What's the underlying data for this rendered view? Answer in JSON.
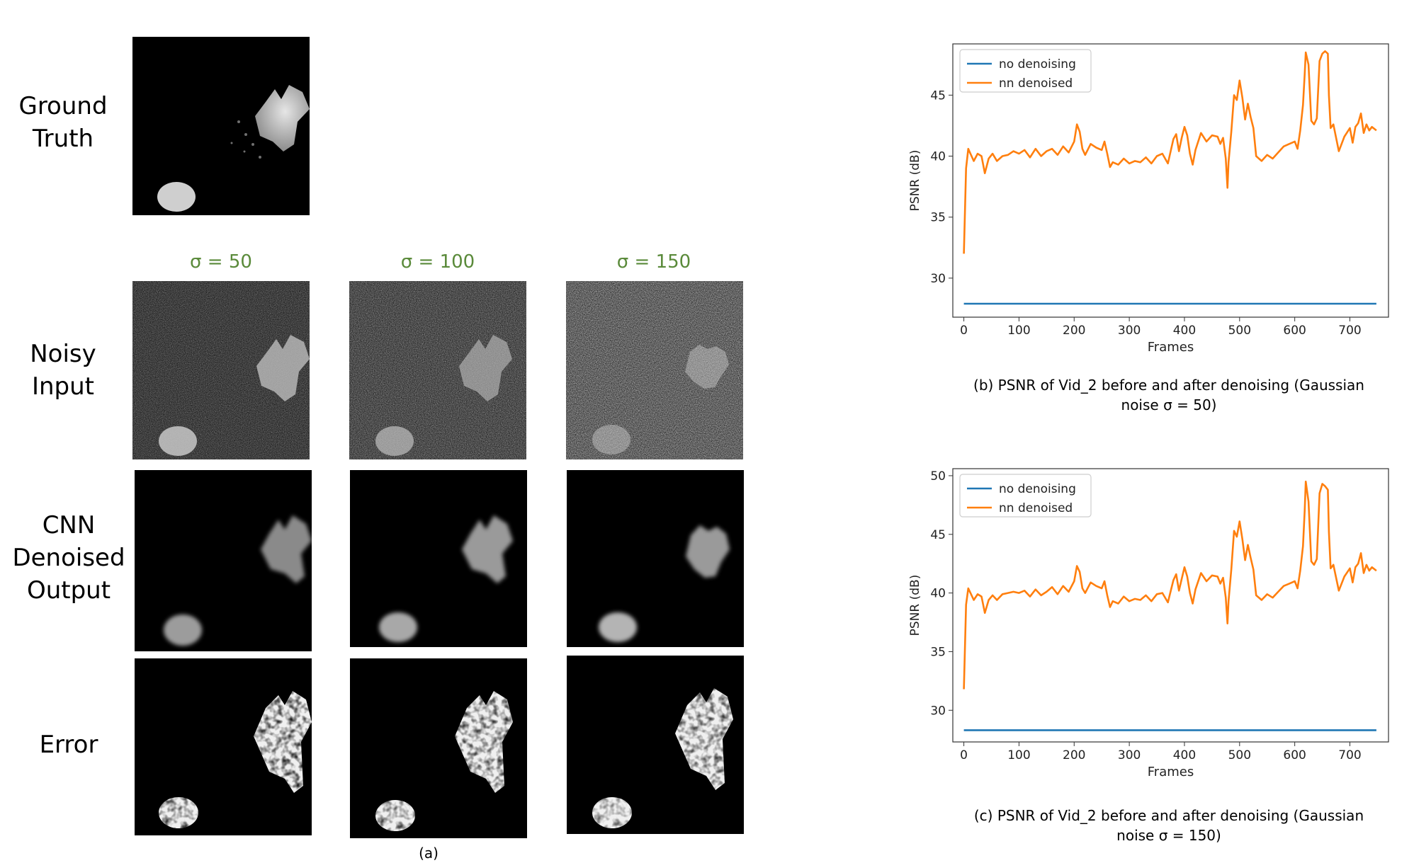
{
  "row_labels": {
    "ground_truth": [
      "Ground",
      "Truth"
    ],
    "noisy_input": [
      "Noisy",
      "Input"
    ],
    "cnn_output": [
      "CNN",
      "Denoised",
      "Output"
    ],
    "error": [
      "Error"
    ]
  },
  "sigma_labels": [
    "σ = 50",
    "σ = 100",
    "σ = 150"
  ],
  "panel_a_caption": "(a)",
  "captions": {
    "b": [
      "(b) PSNR of Vid_2 before and after denoising (Gaussian",
      "noise σ = 50)"
    ],
    "c": [
      "(c) PSNR of Vid_2 before and after denoising (Gaussian",
      "noise σ = 150)"
    ]
  },
  "chart_data": [
    {
      "type": "line",
      "title": "",
      "xlabel": "Frames",
      "ylabel": "PSNR (dB)",
      "xlim": [
        -20,
        770
      ],
      "ylim": [
        26.8,
        49.2
      ],
      "xticks": [
        0,
        100,
        200,
        300,
        400,
        500,
        600,
        700
      ],
      "yticks": [
        30,
        35,
        40,
        45
      ],
      "legend": "top-left",
      "colors": {
        "no denoising": "#1f77b4",
        "nn denoised": "#ff7f0e"
      },
      "series": [
        {
          "name": "no denoising",
          "x": [
            0,
            100,
            200,
            300,
            400,
            500,
            600,
            700,
            748
          ],
          "y": [
            27.9,
            27.9,
            27.9,
            27.9,
            27.9,
            27.9,
            27.9,
            27.9,
            27.9
          ]
        },
        {
          "name": "nn denoised",
          "x": [
            0,
            4,
            8,
            12,
            18,
            25,
            32,
            38,
            45,
            52,
            60,
            70,
            80,
            90,
            100,
            110,
            120,
            130,
            140,
            150,
            160,
            170,
            180,
            190,
            200,
            205,
            210,
            215,
            220,
            230,
            240,
            250,
            255,
            260,
            265,
            270,
            280,
            290,
            300,
            310,
            320,
            330,
            340,
            350,
            360,
            370,
            380,
            385,
            390,
            395,
            400,
            405,
            410,
            415,
            420,
            430,
            440,
            450,
            460,
            465,
            470,
            475,
            478,
            480,
            485,
            490,
            495,
            500,
            505,
            510,
            515,
            520,
            525,
            530,
            540,
            550,
            560,
            570,
            580,
            590,
            600,
            605,
            610,
            615,
            618,
            620,
            625,
            630,
            635,
            640,
            645,
            650,
            655,
            660,
            662,
            665,
            670,
            680,
            690,
            700,
            705,
            710,
            715,
            720,
            725,
            730,
            735,
            740,
            748
          ],
          "y": [
            32.0,
            39.0,
            40.6,
            40.2,
            39.6,
            40.2,
            40.0,
            38.6,
            39.8,
            40.2,
            39.6,
            40.0,
            40.1,
            40.4,
            40.2,
            40.5,
            39.9,
            40.6,
            40.0,
            40.4,
            40.6,
            40.1,
            40.8,
            40.3,
            41.2,
            42.6,
            42.0,
            40.6,
            40.1,
            41.0,
            40.7,
            40.5,
            41.2,
            40.2,
            39.1,
            39.5,
            39.3,
            39.8,
            39.4,
            39.6,
            39.5,
            39.9,
            39.4,
            40.0,
            40.2,
            39.4,
            41.4,
            41.8,
            40.4,
            41.5,
            42.4,
            41.7,
            40.2,
            39.3,
            40.5,
            41.9,
            41.2,
            41.7,
            41.6,
            41.0,
            41.5,
            39.8,
            37.4,
            39.5,
            42.0,
            45.0,
            44.6,
            46.2,
            44.8,
            43.0,
            44.3,
            43.2,
            42.3,
            40.0,
            39.6,
            40.1,
            39.8,
            40.3,
            40.8,
            41.0,
            41.2,
            40.6,
            42.1,
            44.2,
            46.7,
            48.5,
            47.5,
            42.9,
            42.6,
            43.1,
            47.8,
            48.4,
            48.6,
            48.4,
            45.0,
            42.3,
            42.6,
            40.4,
            41.6,
            42.3,
            41.1,
            42.4,
            42.7,
            43.5,
            41.9,
            42.6,
            42.1,
            42.4,
            42.1
          ]
        }
      ]
    },
    {
      "type": "line",
      "title": "",
      "xlabel": "Frames",
      "ylabel": "PSNR (dB)",
      "xlim": [
        -20,
        770
      ],
      "ylim": [
        27.3,
        50.6
      ],
      "xticks": [
        0,
        100,
        200,
        300,
        400,
        500,
        600,
        700
      ],
      "yticks": [
        30,
        35,
        40,
        45,
        50
      ],
      "legend": "top-left",
      "colors": {
        "no denoising": "#1f77b4",
        "nn denoised": "#ff7f0e"
      },
      "series": [
        {
          "name": "no denoising",
          "x": [
            0,
            100,
            200,
            300,
            400,
            500,
            600,
            700,
            748
          ],
          "y": [
            28.3,
            28.3,
            28.3,
            28.3,
            28.3,
            28.3,
            28.3,
            28.3,
            28.3
          ]
        },
        {
          "name": "nn denoised",
          "x": [
            0,
            4,
            8,
            12,
            18,
            25,
            32,
            38,
            45,
            52,
            60,
            70,
            80,
            90,
            100,
            110,
            120,
            130,
            140,
            150,
            160,
            170,
            180,
            190,
            200,
            205,
            210,
            215,
            220,
            230,
            240,
            250,
            255,
            260,
            265,
            270,
            280,
            290,
            300,
            310,
            320,
            330,
            340,
            350,
            360,
            370,
            380,
            385,
            390,
            395,
            400,
            405,
            410,
            415,
            420,
            430,
            440,
            450,
            460,
            465,
            470,
            475,
            478,
            480,
            485,
            490,
            495,
            500,
            505,
            510,
            515,
            520,
            525,
            530,
            540,
            550,
            560,
            570,
            580,
            590,
            600,
            605,
            610,
            615,
            618,
            620,
            625,
            630,
            635,
            640,
            645,
            650,
            655,
            660,
            662,
            665,
            670,
            680,
            690,
            700,
            705,
            710,
            715,
            720,
            725,
            730,
            735,
            740,
            748
          ],
          "y": [
            31.8,
            39.0,
            40.4,
            40.0,
            39.4,
            39.9,
            39.7,
            38.3,
            39.4,
            39.8,
            39.4,
            39.9,
            40.0,
            40.1,
            40.0,
            40.2,
            39.7,
            40.3,
            39.8,
            40.1,
            40.5,
            39.9,
            40.6,
            40.1,
            41.0,
            42.3,
            41.8,
            40.4,
            40.0,
            40.9,
            40.6,
            40.4,
            41.0,
            39.8,
            38.8,
            39.3,
            39.1,
            39.7,
            39.3,
            39.5,
            39.4,
            39.8,
            39.3,
            39.9,
            40.0,
            39.2,
            41.1,
            41.6,
            40.2,
            41.2,
            42.2,
            41.4,
            40.0,
            39.1,
            40.3,
            41.7,
            41.0,
            41.5,
            41.4,
            40.8,
            41.3,
            39.6,
            37.4,
            39.3,
            42.0,
            45.3,
            44.8,
            46.1,
            44.6,
            42.8,
            44.1,
            43.0,
            42.0,
            39.8,
            39.4,
            39.9,
            39.6,
            40.1,
            40.6,
            40.8,
            41.0,
            40.4,
            41.9,
            44.0,
            47.0,
            49.5,
            47.8,
            42.7,
            42.4,
            42.9,
            48.5,
            49.3,
            49.1,
            48.8,
            45.2,
            42.1,
            42.4,
            40.2,
            41.4,
            42.1,
            40.9,
            42.2,
            42.5,
            43.4,
            41.7,
            42.4,
            41.9,
            42.2,
            41.9
          ]
        }
      ]
    }
  ]
}
